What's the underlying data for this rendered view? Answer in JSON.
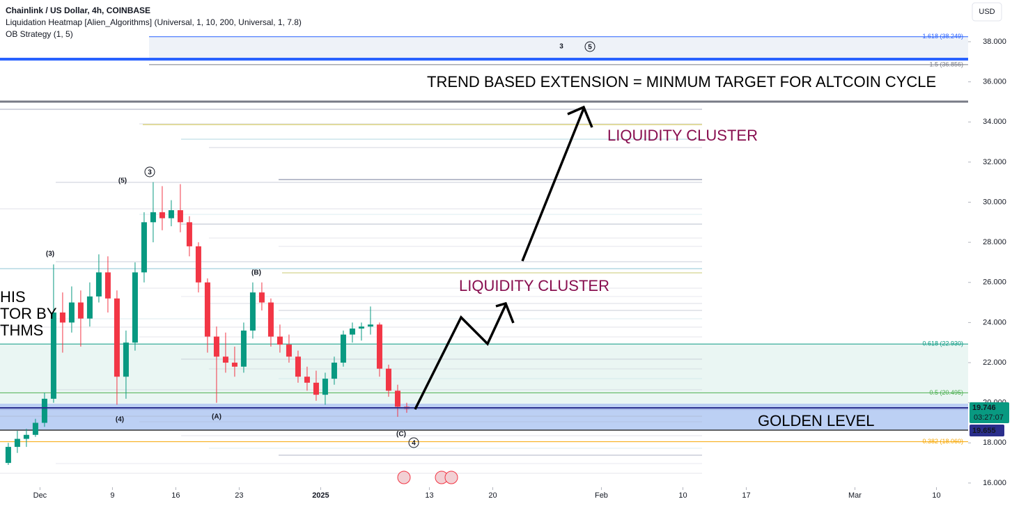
{
  "chart_data": {
    "type": "candlestick",
    "title": "Chainlink / US Dollar, 4h, COINBASE",
    "indicators": [
      "Liquidation Heatmap [Alien_Algorithms] (Universal, 1, 10, 200, Universal, 1, 7.8)",
      "OB Strategy (1, 5)"
    ],
    "currency": "USD",
    "x": [
      "2024-11-27",
      "2024-11-28",
      "2024-11-29",
      "2024-11-30",
      "2024-12-01",
      "2024-12-02",
      "2024-12-03",
      "2024-12-04",
      "2024-12-05",
      "2024-12-06",
      "2024-12-07",
      "2024-12-08",
      "2024-12-09",
      "2024-12-10",
      "2024-12-11",
      "2024-12-12",
      "2024-12-13",
      "2024-12-14",
      "2024-12-15",
      "2024-12-16",
      "2024-12-17",
      "2024-12-18",
      "2024-12-19",
      "2024-12-20",
      "2024-12-21",
      "2024-12-22",
      "2024-12-23",
      "2024-12-24",
      "2024-12-25",
      "2024-12-26",
      "2024-12-27",
      "2024-12-28",
      "2024-12-29",
      "2024-12-30",
      "2024-12-31",
      "2025-01-01",
      "2025-01-02",
      "2025-01-03",
      "2025-01-04",
      "2025-01-05",
      "2025-01-06",
      "2025-01-07",
      "2025-01-08",
      "2025-01-09",
      "2025-01-10"
    ],
    "open": [
      17.0,
      17.8,
      18.2,
      18.4,
      19.0,
      20.2,
      24.5,
      24.0,
      25.0,
      24.2,
      25.3,
      26.5,
      25.2,
      21.3,
      23.0,
      26.5,
      29.0,
      29.5,
      29.2,
      29.6,
      29.0,
      27.8,
      26.0,
      23.3,
      22.3,
      22.0,
      21.8,
      23.6,
      25.5,
      25.0,
      23.3,
      22.9,
      22.3,
      21.3,
      21.0,
      20.4,
      21.2,
      22.0,
      23.4,
      23.7,
      23.8,
      23.9,
      21.7,
      20.6,
      19.8
    ],
    "high": [
      18.0,
      18.6,
      18.7,
      19.2,
      20.5,
      26.9,
      25.5,
      25.8,
      25.6,
      26.0,
      27.4,
      27.3,
      25.6,
      23.6,
      27.0,
      29.5,
      31.0,
      30.8,
      30.1,
      30.9,
      29.3,
      28.0,
      26.2,
      23.8,
      23.5,
      22.8,
      24.0,
      26.0,
      26.0,
      25.2,
      23.9,
      23.4,
      22.6,
      21.8,
      21.6,
      21.5,
      22.3,
      23.6,
      24.0,
      24.0,
      24.8,
      24.0,
      21.9,
      20.9,
      20.0
    ],
    "low": [
      16.9,
      17.5,
      17.8,
      18.3,
      18.8,
      20.0,
      22.5,
      23.5,
      22.8,
      23.8,
      25.0,
      24.5,
      19.9,
      20.2,
      22.6,
      26.0,
      28.0,
      28.6,
      28.8,
      28.5,
      27.3,
      25.5,
      22.5,
      20.0,
      21.5,
      21.3,
      21.5,
      23.2,
      24.6,
      22.8,
      22.5,
      22.0,
      21.0,
      20.6,
      20.1,
      19.9,
      20.9,
      21.8,
      23.0,
      23.1,
      23.4,
      21.3,
      20.3,
      19.3,
      19.5
    ],
    "close": [
      17.8,
      18.2,
      18.4,
      19.0,
      20.2,
      24.5,
      24.0,
      25.0,
      24.2,
      25.3,
      26.5,
      25.2,
      21.3,
      23.0,
      26.5,
      29.0,
      29.5,
      29.2,
      29.6,
      29.0,
      27.8,
      26.0,
      23.3,
      22.3,
      22.0,
      21.8,
      23.6,
      25.5,
      25.0,
      23.3,
      22.9,
      22.3,
      21.3,
      21.0,
      20.4,
      21.2,
      22.0,
      23.4,
      23.7,
      23.8,
      23.9,
      21.7,
      20.6,
      19.8,
      19.7
    ],
    "up_color": "#089981",
    "down_color": "#f23645",
    "xlim": [
      "2024-11-26T14:00:00",
      "2025-03-13T12:00:00"
    ],
    "xticks": [
      {
        "value": "2024-12-01",
        "label": "Dec"
      },
      {
        "value": "2024-12-09",
        "label": "9"
      },
      {
        "value": "2024-12-16",
        "label": "16"
      },
      {
        "value": "2024-12-23",
        "label": "23"
      },
      {
        "value": "2025-01-01",
        "label": "2025"
      },
      {
        "value": "2025-01-13",
        "label": "13"
      },
      {
        "value": "2025-01-20",
        "label": "20"
      },
      {
        "value": "2025-02-01",
        "label": "Feb"
      },
      {
        "value": "2025-02-10",
        "label": "10"
      },
      {
        "value": "2025-02-17",
        "label": "17"
      },
      {
        "value": "2025-03-01",
        "label": "Mar"
      },
      {
        "value": "2025-03-10",
        "label": "10"
      }
    ],
    "ylim": [
      15.79,
      40.08
    ],
    "yticks": [
      {
        "value": 16,
        "label": "16.000"
      },
      {
        "value": 18,
        "label": "18.000"
      },
      {
        "value": 20,
        "label": "20.000"
      },
      {
        "value": 22,
        "label": "22.000"
      },
      {
        "value": 24,
        "label": "24.000"
      },
      {
        "value": 26,
        "label": "26.000"
      },
      {
        "value": 28,
        "label": "28.000"
      },
      {
        "value": 30,
        "label": "30.000"
      },
      {
        "value": 32,
        "label": "32.000"
      },
      {
        "value": 34,
        "label": "34.000"
      },
      {
        "value": 36,
        "label": "36.000"
      },
      {
        "value": 38,
        "label": "38.000"
      }
    ],
    "fib_levels": [
      {
        "value": 38.249,
        "label": "1.618 (38.249)",
        "color": "#2962ff"
      },
      {
        "value": 36.856,
        "label": "1.5 (36.856)",
        "color": "#787b86"
      },
      {
        "value": 22.93,
        "label": "0.618 (22.930)",
        "color": "#089981"
      },
      {
        "value": 20.495,
        "label": "0.5 (20.495)",
        "color": "#4caf50"
      },
      {
        "value": 18.06,
        "label": "0.382 (18.060)",
        "color": "#f7a600"
      }
    ],
    "last_price": {
      "value": 19.746,
      "label": "19.746",
      "countdown": "03:27:07"
    },
    "level_price": {
      "value": 19.655,
      "label": "19.655"
    },
    "annotations": [
      "TREND BASED EXTENSION = MINMUM TARGET FOR ALTCOIN CYCLE",
      "LIQUIDITY CLUSTER",
      "LIQUIDITY CLUSTER",
      "GOLDEN LEVEL",
      "HIS",
      "TOR BY",
      "THMS"
    ],
    "wave_labels": [
      "(3)",
      "(5)",
      "(4)",
      "(A)",
      "(B)",
      "(C)",
      "3",
      "4",
      "5",
      "3"
    ]
  }
}
